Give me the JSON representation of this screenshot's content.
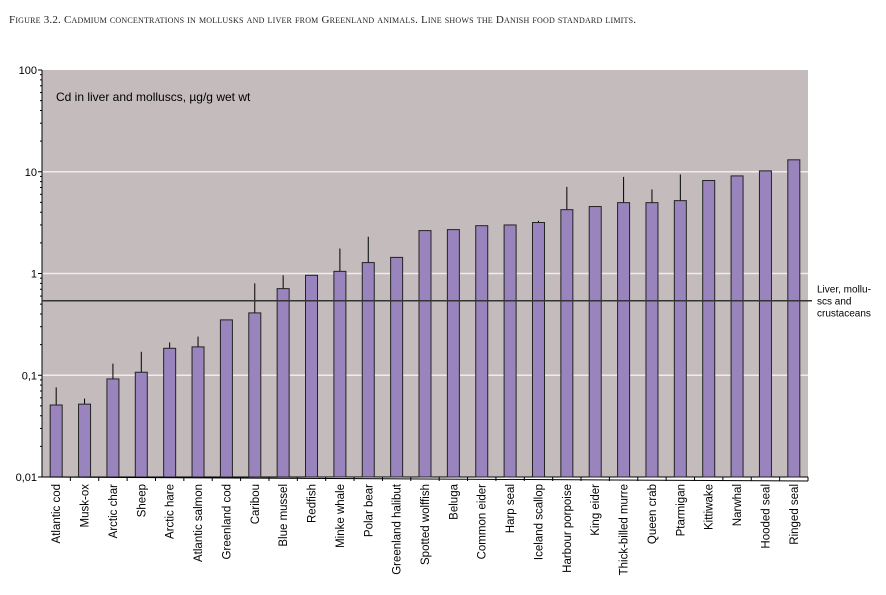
{
  "caption": "Figure 3.2. Cadmium concentrations in mollusks and liver from Greenland animals. Line shows the Danish food standard limits.",
  "chart_data": {
    "type": "bar",
    "title": "Cd in liver and molluscs, µg/g wet wt",
    "yscale": "log",
    "ylim": [
      0.01,
      100
    ],
    "yticks": [
      {
        "v": 100,
        "label": "100"
      },
      {
        "v": 10,
        "label": "10"
      },
      {
        "v": 1,
        "label": "1"
      },
      {
        "v": 0.1,
        "label": "0,1"
      },
      {
        "v": 0.01,
        "label": "0,01"
      }
    ],
    "grid": true,
    "categories": [
      "Atlantic cod",
      "Musk-ox",
      "Arctic char",
      "Sheep",
      "Arctic hare",
      "Atlantic salmon",
      "Greenland cod",
      "Caribou",
      "Blue mussel",
      "Redfish",
      "Minke whale",
      "Polar bear",
      "Greenland halibut",
      "Spotted wolffish",
      "Beluga",
      "Common eider",
      "Harp seal",
      "Iceland scallop",
      "Harbour porpoise",
      "King eider",
      "Thick-billed murre",
      "Queen crab",
      "Ptarmigan",
      "Kittiwake",
      "Narwhal",
      "Hooded seal",
      "Ringed seal"
    ],
    "values": [
      0.051,
      0.052,
      0.092,
      0.107,
      0.184,
      0.19,
      0.35,
      0.41,
      0.71,
      0.96,
      1.05,
      1.28,
      1.44,
      2.64,
      2.7,
      2.95,
      3.0,
      3.17,
      4.24,
      4.55,
      4.97,
      4.97,
      5.2,
      8.2,
      9.1,
      10.2,
      13.1
    ],
    "error_upper": [
      0.076,
      0.059,
      0.13,
      0.17,
      0.21,
      0.24,
      null,
      0.8,
      0.96,
      null,
      1.76,
      2.3,
      null,
      null,
      null,
      null,
      null,
      3.3,
      7.1,
      null,
      8.9,
      6.7,
      9.4,
      null,
      null,
      null,
      null
    ],
    "reference_line": {
      "value": 0.54,
      "label_lines": [
        "Liver, mollu-",
        "scs and",
        "crustaceans"
      ]
    },
    "colors": {
      "bar": "#9a84be",
      "plot_bg": "#c4bcbc",
      "grid": "#f0ecec",
      "line": "#333333"
    }
  }
}
